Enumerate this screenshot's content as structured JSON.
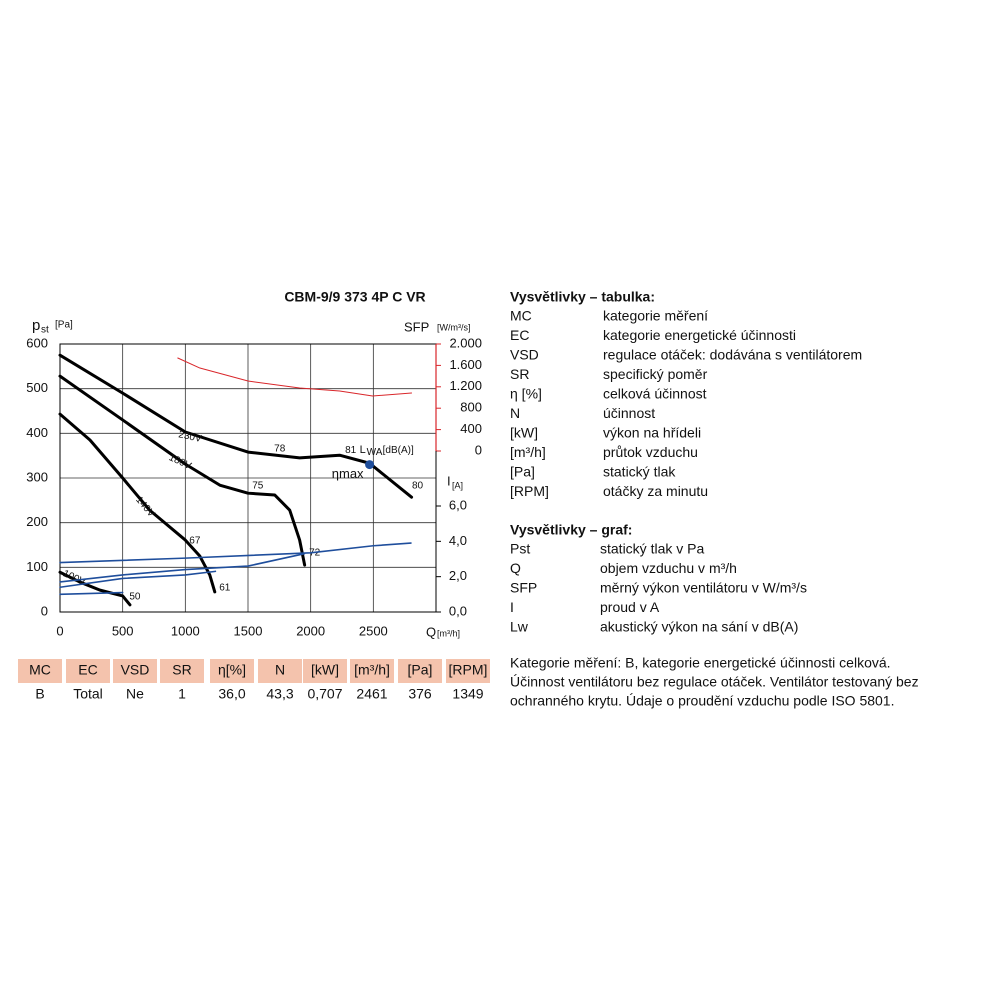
{
  "chart_data": {
    "type": "line",
    "title": "CBM-9/9 373 4P C VR",
    "ylabel": {
      "symbol": "p",
      "sub": "st",
      "unit": "[Pa]"
    },
    "y2label": {
      "symbol": "SFP",
      "unit": "[W/m³/s]"
    },
    "y3label": {
      "symbol": "I",
      "unit": "[A]"
    },
    "xlabel": {
      "symbol": "Q",
      "unit": "[m³/h]"
    },
    "xlim": [
      0,
      3000
    ],
    "xticks": [
      0,
      500,
      1000,
      1500,
      2000,
      2500
    ],
    "ylim": [
      0,
      600
    ],
    "yticks": [
      0,
      100,
      200,
      300,
      400,
      500,
      600
    ],
    "y2lim": [
      0,
      2000
    ],
    "y2ticks": [
      {
        "value": 2000,
        "label": "2.000"
      },
      {
        "value": 1600,
        "label": "1.600"
      },
      {
        "value": 1200,
        "label": "1.200"
      },
      800,
      400,
      0
    ],
    "y3lim": [
      0,
      6
    ],
    "y3ticks": [
      {
        "value": 6,
        "label": "6,0"
      },
      {
        "value": 4,
        "label": "4,0"
      },
      {
        "value": 2,
        "label": "2,0"
      },
      {
        "value": 0,
        "label": "0,0"
      }
    ],
    "grid": true,
    "series": [
      {
        "name": "230V",
        "color": "#000000",
        "axis": "y",
        "x": [
          0,
          500,
          1000,
          1500,
          1912,
          2231,
          2470,
          2805
        ],
        "values": [
          575,
          490,
          403,
          358,
          345,
          351,
          333,
          257
        ],
        "sound_levels": [
          {
            "value": 78,
            "x": 1753,
            "y": 365
          },
          {
            "value": 81,
            "x": 2319,
            "y": 362
          },
          {
            "value": 80,
            "x": 2853,
            "y": 282
          }
        ]
      },
      {
        "name": "180V",
        "color": "#000000",
        "axis": "y",
        "x": [
          0,
          500,
          1000,
          1275,
          1500,
          1713,
          1833,
          1912,
          1952
        ],
        "values": [
          528,
          430,
          331,
          284,
          266,
          262,
          228,
          161,
          105
        ],
        "sound_levels": [
          {
            "value": 75,
            "x": 1578,
            "y": 282
          },
          {
            "value": 72,
            "x": 2032,
            "y": 132
          }
        ]
      },
      {
        "name": "140V",
        "color": "#000000",
        "axis": "y",
        "x": [
          0,
          239,
          500,
          715,
          1000,
          1116,
          1195,
          1235
        ],
        "values": [
          443,
          385,
          300,
          228,
          161,
          125,
          83,
          45
        ],
        "sound_levels": [
          {
            "value": 67,
            "x": 1076,
            "y": 159
          },
          {
            "value": 61,
            "x": 1315,
            "y": 54
          }
        ]
      },
      {
        "name": "100V",
        "color": "#000000",
        "axis": "y",
        "x": [
          0,
          159,
          319,
          500,
          558
        ],
        "values": [
          89,
          67,
          49,
          36,
          16
        ],
        "sound_levels": [
          {
            "value": 50,
            "x": 598,
            "y": 34
          }
        ]
      },
      {
        "color": "#d9262a",
        "axis": "y2",
        "x": [
          940,
          1116,
          1500,
          1912,
          2231,
          2494,
          2805
        ],
        "values": [
          1738,
          1551,
          1308,
          1178,
          1121,
          1028,
          1084
        ]
      },
      {
        "color": "#1f4e9c",
        "axis": "y3",
        "x": [
          0,
          1000,
          2000,
          2500,
          2800
        ],
        "values": [
          2.8,
          3.05,
          3.35,
          3.75,
          3.9
        ]
      },
      {
        "color": "#1f4e9c",
        "axis": "y3",
        "x": [
          0,
          500,
          1000,
          1500,
          1950
        ],
        "values": [
          1.7,
          2.1,
          2.4,
          2.6,
          3.3
        ]
      },
      {
        "color": "#1f4e9c",
        "axis": "y3",
        "x": [
          0,
          500,
          1000,
          1240
        ],
        "values": [
          1.4,
          1.9,
          2.1,
          2.3
        ]
      },
      {
        "color": "#1f4e9c",
        "axis": "y3",
        "x": [
          0,
          500
        ],
        "values": [
          1.0,
          1.1
        ]
      }
    ],
    "lw_label": {
      "symbol": "L",
      "sub": "WA",
      "unit": "[dB(A)]"
    },
    "eta_max": {
      "label": "ηmax",
      "x": 2470,
      "y": 330,
      "color": "#1f4e9c"
    }
  },
  "table": {
    "header": [
      "MC",
      "EC",
      "VSD",
      "SR",
      "η[%]",
      "N",
      "[kW]",
      "[m³/h]",
      "[Pa]",
      "[RPM]"
    ],
    "row": [
      "B",
      "Total",
      "Ne",
      "1",
      "36,0",
      "43,3",
      "0,707",
      "2461",
      "376",
      "1349"
    ]
  },
  "legend_table": {
    "title": "Vysvětlivky – tabulka:",
    "rows": [
      [
        "MC",
        "kategorie měření"
      ],
      [
        "EC",
        "kategorie energetické účinnosti"
      ],
      [
        "VSD",
        "regulace otáček: dodávána s ventilátorem"
      ],
      [
        "SR",
        "specifický poměr"
      ],
      [
        "η [%]",
        "celková účinnost"
      ],
      [
        "N",
        "účinnost"
      ],
      [
        "[kW]",
        "výkon na hřídeli"
      ],
      [
        "[m³/h]",
        "průtok vzduchu"
      ],
      [
        "[Pa]",
        "statický tlak"
      ],
      [
        "[RPM]",
        "otáčky za minutu"
      ]
    ]
  },
  "legend_graph": {
    "title": "Vysvětlivky – graf:",
    "rows": [
      [
        "Pst",
        "statický tlak v Pa"
      ],
      [
        "Q",
        "objem vzduchu v m³/h"
      ],
      [
        "SFP",
        "měrný výkon ventilátoru v W/m³/s"
      ],
      [
        "I",
        "proud v A"
      ],
      [
        "Lw",
        "akustický výkon na sání v dB(A)"
      ]
    ]
  },
  "note": [
    "Kategorie měření: B, kategorie energetické účinnosti celková.",
    "Účinnost ventilátoru bez regulace otáček. Ventilátor testovaný bez",
    "ochranného krytu. Údaje o proudění vzduchu podle ISO 5801."
  ]
}
